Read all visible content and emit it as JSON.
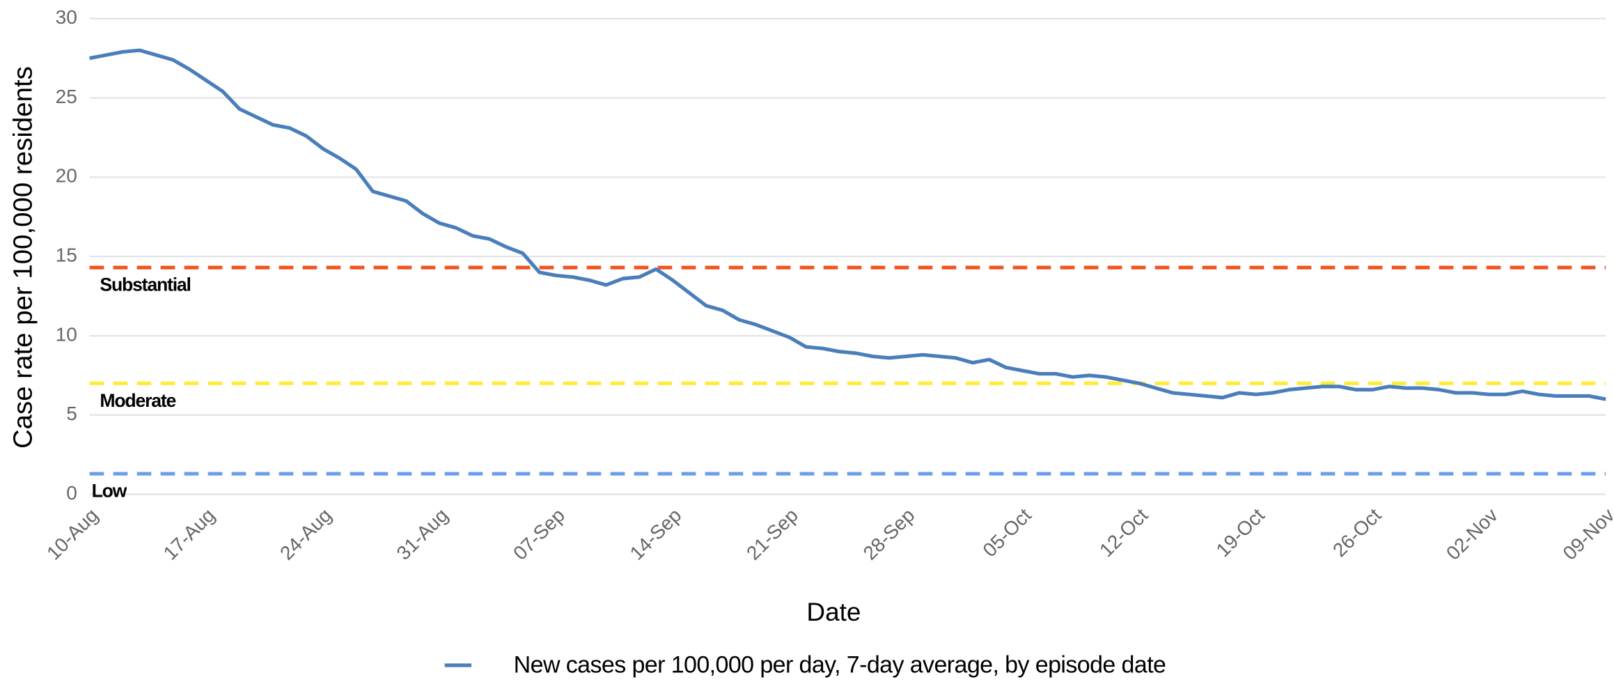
{
  "chart_data": {
    "type": "line",
    "x_label": "Date",
    "y_label": "Case rate per 100,000 residents",
    "categories": [
      "10-Aug",
      null,
      null,
      null,
      null,
      null,
      null,
      "17-Aug",
      null,
      null,
      null,
      null,
      null,
      null,
      "24-Aug",
      null,
      null,
      null,
      null,
      null,
      null,
      "31-Aug",
      null,
      null,
      null,
      null,
      null,
      null,
      "07-Sep",
      null,
      null,
      null,
      null,
      null,
      null,
      "14-Sep",
      null,
      null,
      null,
      null,
      null,
      null,
      "21-Sep",
      null,
      null,
      null,
      null,
      null,
      null,
      "28-Sep",
      null,
      null,
      null,
      null,
      null,
      null,
      "05-Oct",
      null,
      null,
      null,
      null,
      null,
      null,
      "12-Oct",
      null,
      null,
      null,
      null,
      null,
      null,
      "19-Oct",
      null,
      null,
      null,
      null,
      null,
      null,
      "26-Oct",
      null,
      null,
      null,
      null,
      null,
      null,
      "02-Nov",
      null,
      null,
      null,
      null,
      null,
      null,
      "09-Nov"
    ],
    "series": [
      {
        "name": "New cases per 100,000 per day, 7-day average, by episode date",
        "color": "#4a7ebb",
        "values": [
          27.5,
          27.7,
          27.9,
          28.0,
          27.7,
          27.4,
          26.8,
          26.1,
          25.4,
          24.3,
          23.8,
          23.3,
          23.1,
          22.6,
          21.8,
          21.2,
          20.5,
          19.1,
          18.8,
          18.5,
          17.7,
          17.1,
          16.8,
          16.3,
          16.1,
          15.6,
          15.2,
          14.0,
          13.8,
          13.7,
          13.5,
          13.2,
          13.6,
          13.7,
          14.2,
          13.5,
          12.7,
          11.9,
          11.6,
          11.0,
          10.7,
          10.3,
          9.9,
          9.3,
          9.2,
          9.0,
          8.9,
          8.7,
          8.6,
          8.7,
          8.8,
          8.7,
          8.6,
          8.3,
          8.5,
          8.0,
          7.8,
          7.6,
          7.6,
          7.4,
          7.5,
          7.4,
          7.2,
          7.0,
          6.7,
          6.4,
          6.3,
          6.2,
          6.1,
          6.4,
          6.3,
          6.4,
          6.6,
          6.7,
          6.8,
          6.8,
          6.6,
          6.6,
          6.8,
          6.7,
          6.7,
          6.6,
          6.4,
          6.4,
          6.3,
          6.3,
          6.5,
          6.3,
          6.2,
          6.2,
          6.2,
          6.0
        ]
      }
    ],
    "thresholds": [
      {
        "label": "Substantial",
        "value": 14.3,
        "color": "#f4511e"
      },
      {
        "label": "Moderate",
        "value": 7.0,
        "color": "#ffeb3b"
      },
      {
        "label": "Low",
        "value": 1.3,
        "color": "#6d9eeb"
      }
    ],
    "ylim": [
      0,
      30
    ],
    "yticks": [
      0,
      5,
      10,
      15,
      20,
      25,
      30
    ],
    "grid": true,
    "legend": "bottom"
  }
}
